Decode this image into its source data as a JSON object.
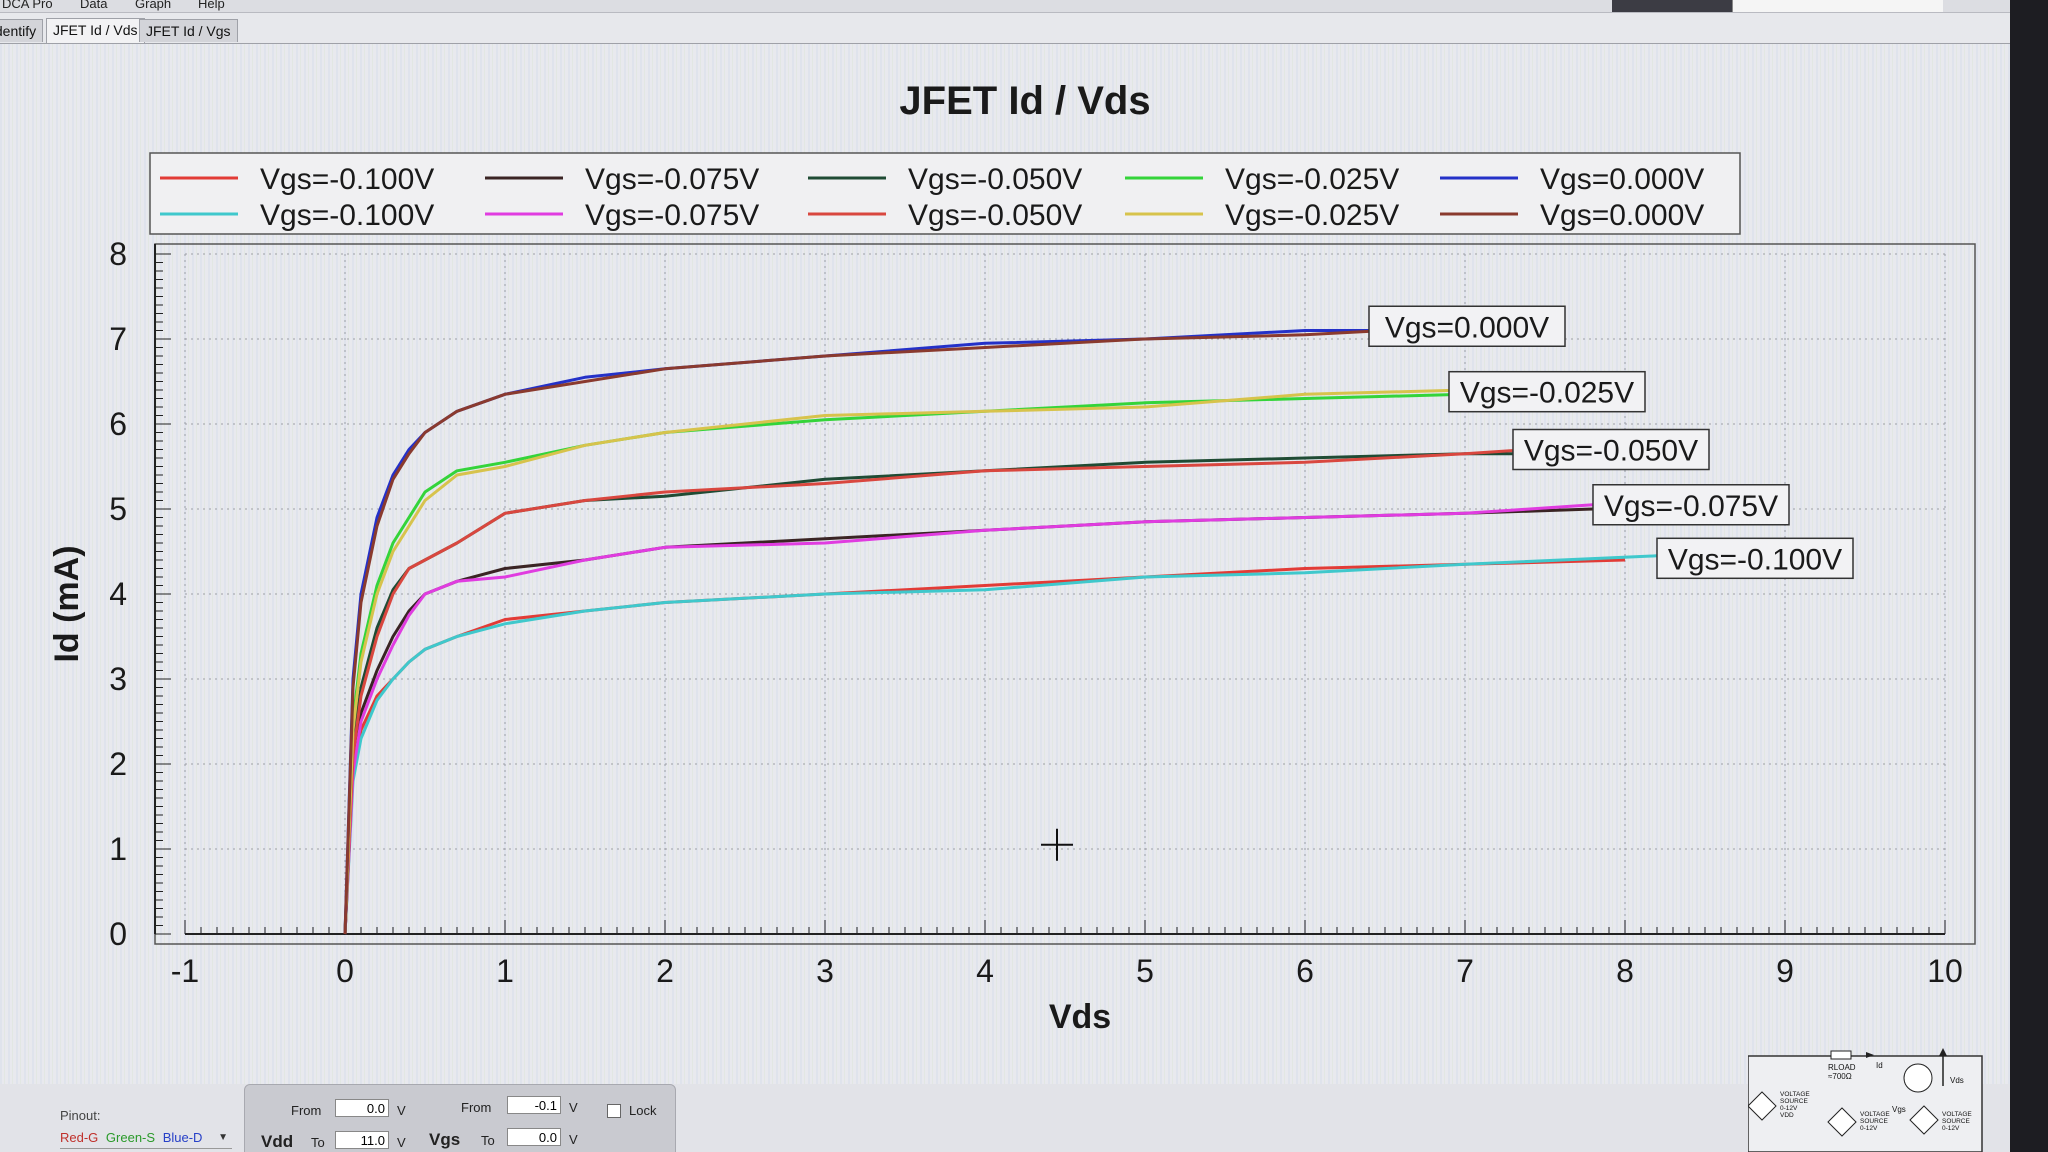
{
  "menu": {
    "items": [
      "DCA Pro",
      "Data",
      "Graph",
      "Help"
    ]
  },
  "tabs": [
    {
      "label": "Identify"
    },
    {
      "label": "JFET Id / Vds"
    },
    {
      "label": "JFET Id / Vgs"
    }
  ],
  "chart_data": {
    "type": "line",
    "title": "JFET Id / Vds",
    "xlabel": "Vds",
    "ylabel": "Id (mA)",
    "xlim": [
      -1,
      10
    ],
    "ylim": [
      0,
      8
    ],
    "xticks": [
      "-1",
      "0",
      "1",
      "2",
      "3",
      "4",
      "5",
      "6",
      "7",
      "8",
      "9",
      "10"
    ],
    "yticks": [
      "0",
      "1",
      "2",
      "3",
      "4",
      "5",
      "6",
      "7",
      "8"
    ],
    "grid": true,
    "legend_position": "top",
    "legend": [
      {
        "name": "Vgs=-0.100V",
        "color": "#e23b36"
      },
      {
        "name": "Vgs=-0.075V",
        "color": "#3a2424"
      },
      {
        "name": "Vgs=-0.050V",
        "color": "#1f4b34"
      },
      {
        "name": "Vgs=-0.025V",
        "color": "#34d43a"
      },
      {
        "name": "Vgs=0.000V",
        "color": "#2431c8"
      },
      {
        "name": "Vgs=-0.100V",
        "color": "#3fc8cc"
      },
      {
        "name": "Vgs=-0.075V",
        "color": "#e03ce0"
      },
      {
        "name": "Vgs=-0.050V",
        "color": "#d9473f"
      },
      {
        "name": "Vgs=-0.025V",
        "color": "#d7c34c"
      },
      {
        "name": "Vgs=0.000V",
        "color": "#8a3a2e"
      }
    ],
    "series": [
      {
        "name": "Vgs=-0.100V",
        "color": "#e23b36",
        "x": [
          0,
          0.05,
          0.1,
          0.2,
          0.3,
          0.4,
          0.5,
          0.7,
          1,
          1.5,
          2,
          3,
          4,
          5,
          6,
          7,
          8
        ],
        "y": [
          0,
          1.9,
          2.4,
          2.8,
          3.0,
          3.2,
          3.35,
          3.5,
          3.7,
          3.8,
          3.9,
          4.0,
          4.1,
          4.2,
          4.3,
          4.35,
          4.4
        ]
      },
      {
        "name": "Vgs=-0.100V",
        "color": "#3fc8cc",
        "x": [
          0,
          0.05,
          0.1,
          0.2,
          0.3,
          0.4,
          0.5,
          0.7,
          1,
          1.5,
          2,
          3,
          4,
          5,
          6,
          7,
          8.2
        ],
        "y": [
          0,
          1.8,
          2.3,
          2.75,
          3.0,
          3.2,
          3.35,
          3.5,
          3.65,
          3.8,
          3.9,
          4.0,
          4.05,
          4.2,
          4.25,
          4.35,
          4.45
        ]
      },
      {
        "name": "Vgs=-0.075V",
        "color": "#3a2424",
        "x": [
          0,
          0.05,
          0.1,
          0.2,
          0.3,
          0.4,
          0.5,
          0.7,
          1,
          1.5,
          2,
          3,
          4,
          5,
          6,
          7,
          7.8
        ],
        "y": [
          0,
          2.0,
          2.6,
          3.1,
          3.5,
          3.8,
          4.0,
          4.15,
          4.3,
          4.4,
          4.55,
          4.65,
          4.75,
          4.85,
          4.9,
          4.95,
          5.0
        ]
      },
      {
        "name": "Vgs=-0.075V",
        "color": "#e03ce0",
        "x": [
          0,
          0.05,
          0.1,
          0.2,
          0.3,
          0.4,
          0.5,
          0.7,
          1,
          1.5,
          2,
          3,
          4,
          5,
          6,
          7,
          7.8
        ],
        "y": [
          0,
          1.9,
          2.5,
          3.0,
          3.4,
          3.75,
          4.0,
          4.15,
          4.2,
          4.4,
          4.55,
          4.6,
          4.75,
          4.85,
          4.9,
          4.95,
          5.05
        ]
      },
      {
        "name": "Vgs=-0.050V",
        "color": "#1f4b34",
        "x": [
          0,
          0.05,
          0.1,
          0.2,
          0.3,
          0.4,
          0.5,
          0.7,
          1,
          1.5,
          2,
          3,
          4,
          5,
          6,
          7,
          7.4
        ],
        "y": [
          0,
          2.2,
          2.9,
          3.6,
          4.05,
          4.3,
          4.4,
          4.6,
          4.95,
          5.1,
          5.15,
          5.35,
          5.45,
          5.55,
          5.6,
          5.65,
          5.65
        ]
      },
      {
        "name": "Vgs=-0.050V",
        "color": "#d9473f",
        "x": [
          0,
          0.05,
          0.1,
          0.2,
          0.3,
          0.4,
          0.5,
          0.7,
          1,
          1.5,
          2,
          3,
          4,
          5,
          6,
          7,
          7.4
        ],
        "y": [
          0,
          2.1,
          2.8,
          3.5,
          4.0,
          4.3,
          4.4,
          4.6,
          4.95,
          5.1,
          5.2,
          5.3,
          5.45,
          5.5,
          5.55,
          5.65,
          5.7
        ]
      },
      {
        "name": "Vgs=-0.025V",
        "color": "#34d43a",
        "x": [
          0,
          0.05,
          0.1,
          0.2,
          0.3,
          0.4,
          0.5,
          0.7,
          1,
          1.5,
          2,
          3,
          4,
          5,
          6,
          7
        ],
        "y": [
          0,
          2.5,
          3.3,
          4.1,
          4.6,
          4.9,
          5.2,
          5.45,
          5.55,
          5.75,
          5.9,
          6.05,
          6.15,
          6.25,
          6.3,
          6.35
        ]
      },
      {
        "name": "Vgs=-0.025V",
        "color": "#d7c34c",
        "x": [
          0,
          0.05,
          0.1,
          0.2,
          0.3,
          0.4,
          0.5,
          0.7,
          1,
          1.5,
          2,
          3,
          4,
          5,
          6,
          7
        ],
        "y": [
          0,
          2.4,
          3.2,
          4.0,
          4.5,
          4.8,
          5.1,
          5.4,
          5.5,
          5.75,
          5.9,
          6.1,
          6.15,
          6.2,
          6.35,
          6.4
        ]
      },
      {
        "name": "Vgs=0.000V",
        "color": "#2431c8",
        "x": [
          0,
          0.05,
          0.1,
          0.2,
          0.3,
          0.4,
          0.5,
          0.7,
          1,
          1.5,
          2,
          3,
          4,
          5,
          6,
          6.5
        ],
        "y": [
          0,
          3.0,
          4.0,
          4.9,
          5.4,
          5.7,
          5.9,
          6.15,
          6.35,
          6.55,
          6.65,
          6.8,
          6.95,
          7.0,
          7.1,
          7.1
        ]
      },
      {
        "name": "Vgs=0.000V",
        "color": "#8a3a2e",
        "x": [
          0,
          0.05,
          0.1,
          0.2,
          0.3,
          0.4,
          0.5,
          0.7,
          1,
          1.5,
          2,
          3,
          4,
          5,
          6,
          6.5
        ],
        "y": [
          0,
          2.9,
          3.9,
          4.8,
          5.35,
          5.65,
          5.9,
          6.15,
          6.35,
          6.5,
          6.65,
          6.8,
          6.9,
          7.0,
          7.05,
          7.1
        ]
      }
    ],
    "annotations": [
      {
        "text": "Vgs=0.000V",
        "x": 6.4,
        "y": 7.15
      },
      {
        "text": "Vgs=-0.025V",
        "x": 6.9,
        "y": 6.38
      },
      {
        "text": "Vgs=-0.050V",
        "x": 7.3,
        "y": 5.7
      },
      {
        "text": "Vgs=-0.075V",
        "x": 7.8,
        "y": 5.05
      },
      {
        "text": "Vgs=-0.100V",
        "x": 8.2,
        "y": 4.42
      }
    ],
    "crosshair": {
      "x": 4.45,
      "y": 1.05
    }
  },
  "pinout": {
    "label": "Pinout:",
    "red": "Red-G",
    "green": "Green-S",
    "blue": "Blue-D",
    "colors": {
      "red": "#c0302b",
      "green": "#2a9a2a",
      "blue": "#2740c8"
    }
  },
  "sweep": {
    "vdd_label": "Vdd",
    "vgs_label": "Vgs",
    "from_label": "From",
    "to_label": "To",
    "unit": "V",
    "vdd_from": "0.0",
    "vdd_to": "11.0",
    "vgs_from": "-0.1",
    "vgs_to": "0.0",
    "lock_label": "Lock"
  },
  "circuit": {
    "rload": "RLOAD",
    "rload_value": "≈700Ω",
    "id_label": "Id",
    "vds_label": "Vds",
    "vgs_label": "Vgs",
    "vdd_source": [
      "VOLTAGE",
      "SOURCE",
      "0-12V",
      "VDD"
    ],
    "vgs_source": [
      "VOLTAGE",
      "SOURCE",
      "0-12V"
    ],
    "vds_source": [
      "VOLTAGE",
      "SOURCE",
      "0-12V"
    ]
  }
}
